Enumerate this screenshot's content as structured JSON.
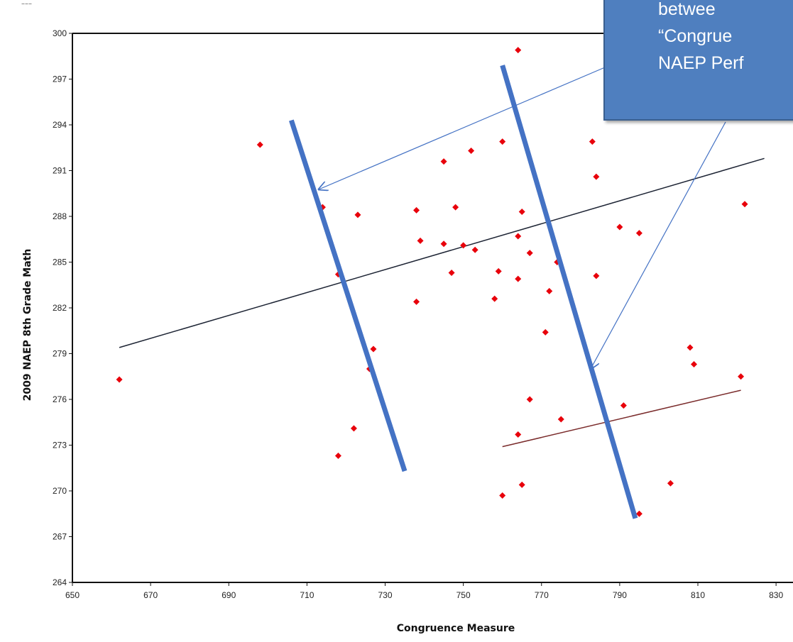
{
  "chart_data": {
    "type": "scatter",
    "xlabel": "Congruence Measure",
    "ylabel": "2009 NAEP 8th Grade Math",
    "xlim": [
      650,
      840
    ],
    "ylim": [
      264,
      300
    ],
    "xticks": [
      650,
      670,
      690,
      710,
      730,
      750,
      770,
      790,
      810,
      830
    ],
    "yticks": [
      264,
      267,
      270,
      273,
      276,
      279,
      282,
      285,
      288,
      291,
      294,
      297,
      300
    ],
    "grid": false,
    "marker_color": "#e8000b",
    "points": [
      [
        662,
        277.3
      ],
      [
        698,
        292.7
      ],
      [
        714,
        288.6
      ],
      [
        718,
        284.2
      ],
      [
        718,
        272.3
      ],
      [
        722,
        274.1
      ],
      [
        723,
        288.1
      ],
      [
        726,
        278.0
      ],
      [
        727,
        279.3
      ],
      [
        738,
        288.4
      ],
      [
        738,
        282.4
      ],
      [
        739,
        286.4
      ],
      [
        745,
        291.6
      ],
      [
        745,
        286.2
      ],
      [
        747,
        284.3
      ],
      [
        748,
        288.6
      ],
      [
        750,
        286.1
      ],
      [
        752,
        292.3
      ],
      [
        753,
        285.8
      ],
      [
        758,
        282.6
      ],
      [
        759,
        284.4
      ],
      [
        760,
        292.9
      ],
      [
        760,
        269.7
      ],
      [
        764,
        298.9
      ],
      [
        764,
        286.7
      ],
      [
        764,
        283.9
      ],
      [
        764,
        273.7
      ],
      [
        765,
        288.3
      ],
      [
        765,
        270.4
      ],
      [
        767,
        285.6
      ],
      [
        767,
        276.0
      ],
      [
        771,
        280.4
      ],
      [
        772,
        283.1
      ],
      [
        774,
        285.0
      ],
      [
        775,
        274.7
      ],
      [
        783,
        292.9
      ],
      [
        784,
        290.6
      ],
      [
        784,
        284.1
      ],
      [
        790,
        287.3
      ],
      [
        791,
        275.6
      ],
      [
        795,
        286.9
      ],
      [
        795,
        268.5
      ],
      [
        803,
        270.5
      ],
      [
        808,
        279.4
      ],
      [
        809,
        278.3
      ],
      [
        821,
        277.5
      ],
      [
        822,
        288.8
      ]
    ],
    "trendlines": [
      {
        "color": "#1c2333",
        "from": [
          662,
          279.4
        ],
        "to": [
          827,
          291.8
        ]
      },
      {
        "color": "#7a2b2b",
        "from": [
          760,
          272.9
        ],
        "to": [
          821,
          276.6
        ]
      }
    ],
    "annotation_bars": [
      {
        "from": [
          706,
          294.3
        ],
        "to": [
          735,
          271.3
        ]
      },
      {
        "from": [
          760,
          297.9
        ],
        "to": [
          794,
          268.2
        ]
      }
    ],
    "callout": {
      "lines": [
        "betwee",
        "“Congrue",
        "NAEP Perf"
      ],
      "color": "#4f7fbf"
    },
    "corner_text": "–––"
  }
}
